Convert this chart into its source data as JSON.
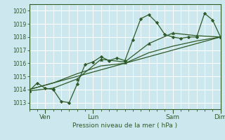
{
  "xlabel": "Pression niveau de la mer ( hPa )",
  "bg_color": "#cce8ee",
  "grid_color": "#ffffff",
  "line_color": "#2d5a27",
  "ylim": [
    1012.5,
    1020.5
  ],
  "xlim": [
    0,
    288
  ],
  "xtick_labels": [
    "Ven",
    "Lun",
    "Sam",
    "Dim"
  ],
  "xtick_positions": [
    24,
    96,
    216,
    288
  ],
  "ytick_values": [
    1013,
    1014,
    1015,
    1016,
    1017,
    1018,
    1019,
    1020
  ],
  "minor_xtick_positions": [
    0,
    12,
    24,
    36,
    48,
    60,
    72,
    84,
    96,
    108,
    120,
    132,
    144,
    156,
    168,
    180,
    192,
    204,
    216,
    228,
    240,
    252,
    264,
    276,
    288
  ],
  "series1_x": [
    0,
    12,
    24,
    36,
    48,
    60,
    72,
    84,
    96,
    108,
    120,
    132,
    144,
    156,
    168,
    180,
    192,
    204,
    216,
    228,
    240,
    252,
    264,
    276,
    288
  ],
  "series1_y": [
    1013.9,
    1014.5,
    1014.1,
    1014.0,
    1013.1,
    1013.0,
    1014.4,
    1015.9,
    1016.1,
    1016.5,
    1016.2,
    1016.4,
    1016.2,
    1017.8,
    1019.4,
    1019.7,
    1019.1,
    1018.2,
    1018.0,
    1017.9,
    1018.0,
    1018.0,
    1019.8,
    1019.3,
    1018.0
  ],
  "series2_x": [
    0,
    36,
    72,
    108,
    144,
    180,
    216,
    252,
    288
  ],
  "series2_y": [
    1013.9,
    1014.1,
    1014.8,
    1016.3,
    1016.1,
    1017.5,
    1018.3,
    1018.1,
    1018.0
  ],
  "series3_x": [
    0,
    288
  ],
  "series3_y": [
    1014.0,
    1018.0
  ],
  "series4_x": [
    0,
    36,
    72,
    108,
    144,
    180,
    216,
    252,
    288
  ],
  "series4_y": [
    1014.0,
    1014.5,
    1015.2,
    1015.8,
    1016.0,
    1016.8,
    1017.3,
    1017.7,
    1018.0
  ]
}
